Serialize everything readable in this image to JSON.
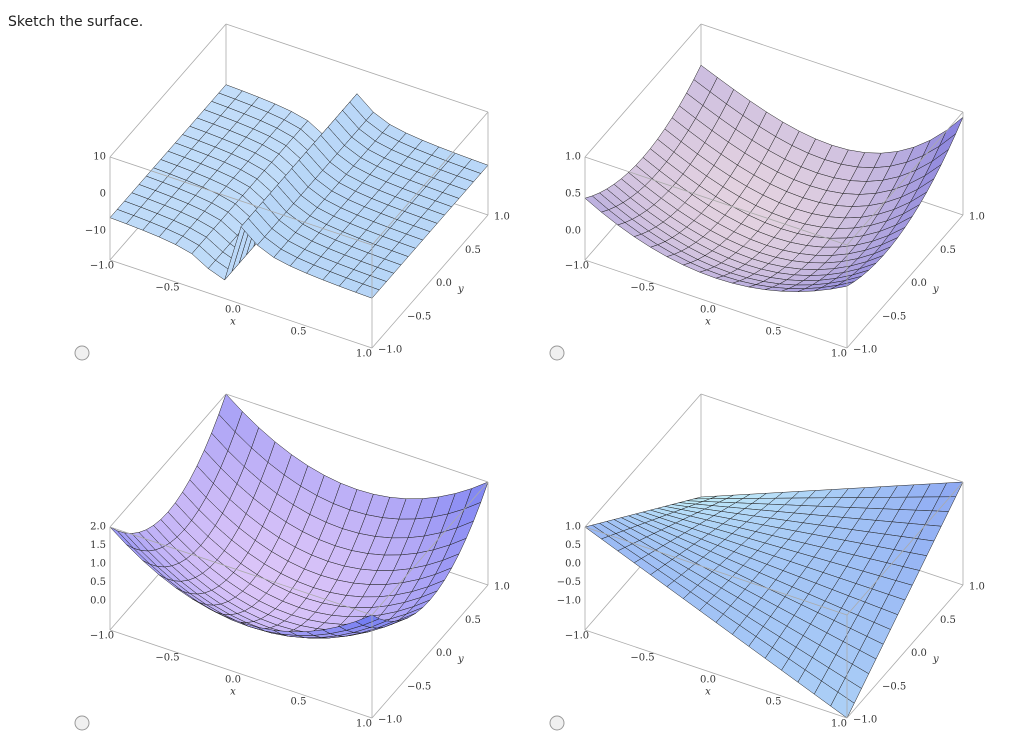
{
  "prompt": "Sketch the surface.",
  "options": [
    {
      "z_ticks": [
        "10",
        "0",
        "−10"
      ],
      "x_ticks": [
        "−1.0",
        "−0.5",
        "0.0",
        "0.5",
        "1.0"
      ],
      "y_ticks": [
        "1.0",
        "0.5",
        "0.0",
        "−0.5",
        "−1.0"
      ],
      "x_label": "x",
      "y_label": "y"
    },
    {
      "z_ticks": [
        "1.0",
        "0.5",
        "0.0"
      ],
      "x_ticks": [
        "−1.0",
        "−0.5",
        "0.0",
        "0.5",
        "1.0"
      ],
      "y_ticks": [
        "1.0",
        "0.5",
        "0.0",
        "−0.5",
        "−1.0"
      ],
      "x_label": "x",
      "y_label": "y"
    },
    {
      "z_ticks": [
        "2.0",
        "1.5",
        "1.0",
        "0.5",
        "0.0"
      ],
      "x_ticks": [
        "−1.0",
        "−0.5",
        "0.0",
        "0.5",
        "1.0"
      ],
      "y_ticks": [
        "1.0",
        "0.5",
        "0.0",
        "−0.5",
        "−1.0"
      ],
      "x_label": "x",
      "y_label": "y"
    },
    {
      "z_ticks": [
        "1.0",
        "0.5",
        "0.0",
        "−0.5",
        "−1.0"
      ],
      "x_ticks": [
        "−1.0",
        "−0.5",
        "0.0",
        "0.5",
        "1.0"
      ],
      "y_ticks": [
        "1.0",
        "0.5",
        "0.0",
        "−0.5",
        "−1.0"
      ],
      "x_label": "x",
      "y_label": "y"
    }
  ]
}
